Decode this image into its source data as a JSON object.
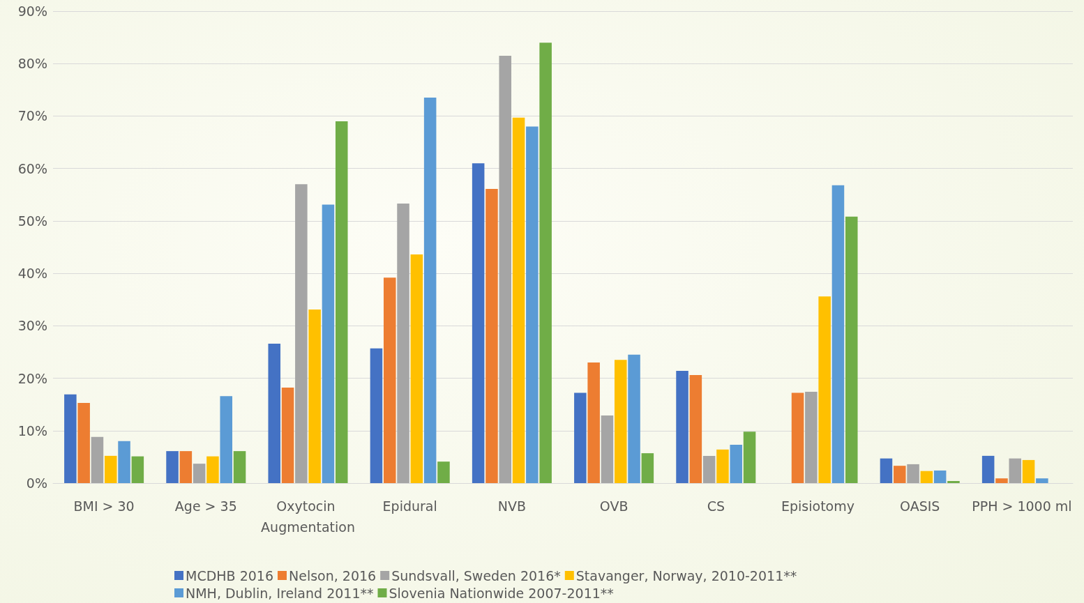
{
  "chart_data": {
    "type": "bar",
    "categories": [
      "BMI > 30",
      "Age > 35",
      "Oxytocin Augmentation",
      "Epidural",
      "NVB",
      "OVB",
      "CS",
      "Episiotomy",
      "OASIS",
      "PPH > 1000 ml"
    ],
    "series": [
      {
        "name": "MCDHB 2016",
        "color": "#4472c4",
        "values": [
          16.9,
          6.1,
          26.6,
          25.7,
          61.0,
          17.2,
          21.4,
          null,
          4.7,
          5.2
        ]
      },
      {
        "name": "Nelson, 2016",
        "color": "#ed7d31",
        "values": [
          15.3,
          6.1,
          18.2,
          39.2,
          56.1,
          23.0,
          20.6,
          17.2,
          3.3,
          0.9
        ]
      },
      {
        "name": "Sundsvall, Sweden 2016*",
        "color": "#a5a5a5",
        "values": [
          8.8,
          3.7,
          57.0,
          53.3,
          81.5,
          12.9,
          5.2,
          17.4,
          3.6,
          4.7
        ]
      },
      {
        "name": "Stavanger, Norway, 2010-2011**",
        "color": "#ffc000",
        "values": [
          5.2,
          5.1,
          33.1,
          43.6,
          69.7,
          23.5,
          6.4,
          35.6,
          2.3,
          4.4
        ]
      },
      {
        "name": "NMH, Dublin, Ireland 2011**",
        "color": "#5b9bd5",
        "values": [
          8.0,
          16.6,
          53.1,
          73.5,
          68.0,
          24.5,
          7.3,
          56.8,
          2.4,
          0.9
        ]
      },
      {
        "name": "Slovenia Nationwide 2007-2011**",
        "color": "#70ad47",
        "values": [
          5.1,
          6.1,
          69.0,
          4.1,
          84.0,
          5.7,
          9.8,
          50.8,
          0.4,
          null
        ]
      }
    ],
    "ylim": [
      0,
      90
    ],
    "yticks": [
      {
        "value": 0,
        "label": "0%"
      },
      {
        "value": 10,
        "label": "10%"
      },
      {
        "value": 20,
        "label": "20%"
      },
      {
        "value": 30,
        "label": "30%"
      },
      {
        "value": 40,
        "label": "40%"
      },
      {
        "value": 50,
        "label": "50%"
      },
      {
        "value": 60,
        "label": "60%"
      },
      {
        "value": 70,
        "label": "70%"
      },
      {
        "value": 80,
        "label": "80%"
      },
      {
        "value": 90,
        "label": "90%"
      }
    ],
    "grid": "y",
    "legend": "bottom"
  }
}
